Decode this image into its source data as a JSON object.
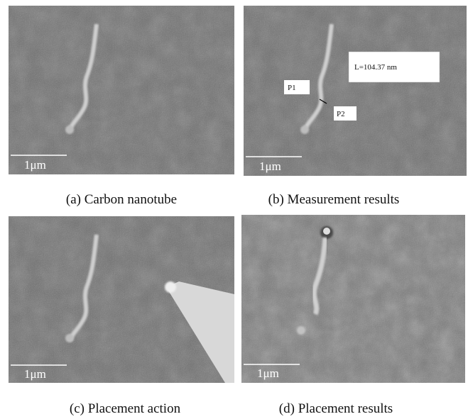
{
  "panels": [
    {
      "caption": "(a) Carbon nanotube",
      "scale_bar": "1μm"
    },
    {
      "caption": "(b) Measurement results",
      "scale_bar": "1μm",
      "annotations": [
        "L=104.37 nm",
        "P1",
        "P2"
      ]
    },
    {
      "caption": "(c) Placement action",
      "scale_bar": "1μm"
    },
    {
      "caption": "(d) Placement results",
      "scale_bar": "1μm"
    }
  ]
}
